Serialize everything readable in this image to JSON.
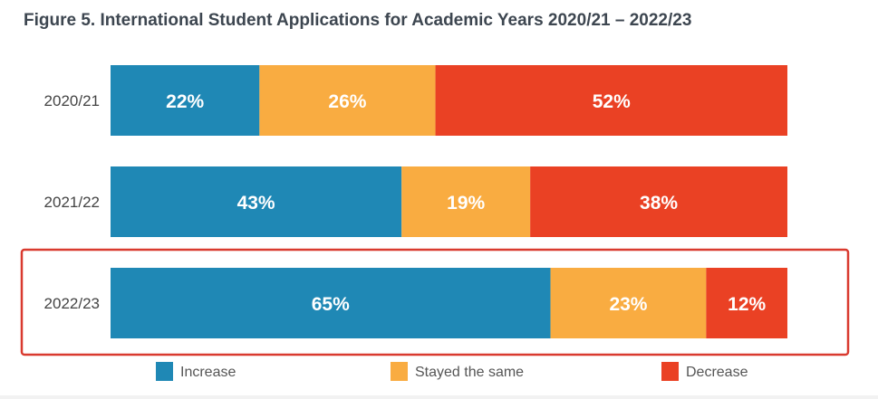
{
  "chart_data": {
    "type": "bar",
    "orientation": "horizontal",
    "stacked": true,
    "title": "Figure 5. International Student Applications for Academic Years 2020/21 – 2022/23",
    "categories": [
      "2020/21",
      "2021/22",
      "2022/23"
    ],
    "series": [
      {
        "name": "Increase",
        "color": "#1f88b5",
        "values": [
          22,
          43,
          65
        ],
        "labels": [
          "22%",
          "43%",
          "65%"
        ]
      },
      {
        "name": "Stayed the same",
        "color": "#f9ac41",
        "values": [
          26,
          19,
          23
        ],
        "labels": [
          "26%",
          "19%",
          "23%"
        ]
      },
      {
        "name": "Decrease",
        "color": "#ea4124",
        "values": [
          52,
          38,
          12
        ],
        "labels": [
          "52%",
          "38%",
          "12%"
        ]
      }
    ],
    "xlim": [
      0,
      100
    ],
    "grid": false,
    "legend": "bottom",
    "highlight": {
      "category": "2022/23",
      "color": "#d93a2f"
    }
  }
}
